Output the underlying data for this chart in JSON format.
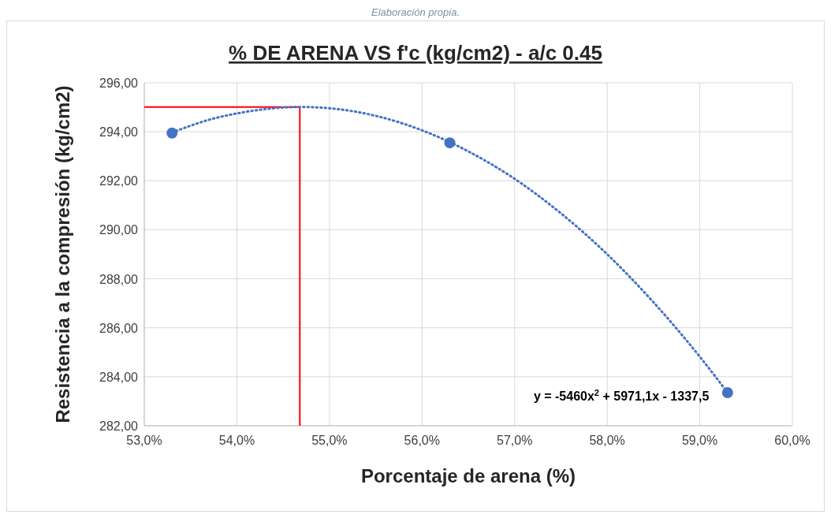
{
  "chart_data": {
    "type": "scatter",
    "title": "% DE ARENA VS f'c (kg/cm2) - a/c 0.45",
    "xlabel": "Porcentaje de arena (%)",
    "ylabel": "Resistencia a la compresión (kg/cm2)",
    "annotations": [
      "Elaboración propia.",
      "y = -5460x$^{2}$ + 5971,1x - 1337,5"
    ],
    "series": [
      {
        "color": "#4472c4",
        "marker": "circle",
        "x": [
          53.3,
          56.3,
          59.3
        ],
        "values": [
          293.95,
          293.55,
          283.35
        ]
      },
      {
        "type": "line",
        "color": "#4472c4",
        "line_style": "dotted",
        "marker": "none",
        "x": [
          53.3,
          53.7,
          54,
          54.7,
          55,
          55.5,
          56,
          56.5,
          57,
          57.5,
          58,
          58.5,
          59,
          59.3
        ],
        "values": [
          293.97,
          294.49,
          294.75,
          295.01,
          294.96,
          294.65,
          294.06,
          293.2,
          292.08,
          290.67,
          289.0,
          287.04,
          284.82,
          283.36
        ]
      }
    ],
    "ref_lines": [
      {
        "axis": "x",
        "value": 54.68,
        "color": "#ff0000"
      },
      {
        "axis": "y",
        "value": 295.01,
        "color": "#ff0000"
      }
    ],
    "xlim": [
      53,
      60
    ],
    "xticks": [
      {
        "value": 53,
        "label": "53,0%"
      },
      {
        "value": 54,
        "label": "54,0%"
      },
      {
        "value": 55,
        "label": "55,0%"
      },
      {
        "value": 56,
        "label": "56,0%"
      },
      {
        "value": 57,
        "label": "57,0%"
      },
      {
        "value": 58,
        "label": "58,0%"
      },
      {
        "value": 59,
        "label": "59,0%"
      },
      {
        "value": 60,
        "label": "60,0%"
      }
    ],
    "ylim": [
      282,
      296
    ],
    "yticks": [
      {
        "value": 282,
        "label": "282,00"
      },
      {
        "value": 284,
        "label": "284,00"
      },
      {
        "value": 286,
        "label": "286,00"
      },
      {
        "value": 288,
        "label": "288,00"
      },
      {
        "value": 290,
        "label": "290,00"
      },
      {
        "value": 292,
        "label": "292,00"
      },
      {
        "value": 294,
        "label": "294,00"
      },
      {
        "value": 296,
        "label": "296,00"
      }
    ],
    "grid": true
  }
}
